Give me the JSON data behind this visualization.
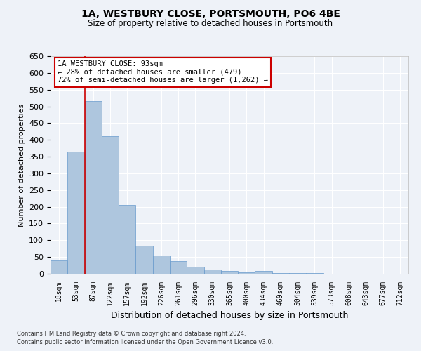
{
  "title": "1A, WESTBURY CLOSE, PORTSMOUTH, PO6 4BE",
  "subtitle": "Size of property relative to detached houses in Portsmouth",
  "xlabel": "Distribution of detached houses by size in Portsmouth",
  "ylabel": "Number of detached properties",
  "bar_color": "#aec6de",
  "bar_edge_color": "#6699cc",
  "background_color": "#eef2f8",
  "grid_color": "#ffffff",
  "categories": [
    "18sqm",
    "53sqm",
    "87sqm",
    "122sqm",
    "157sqm",
    "192sqm",
    "226sqm",
    "261sqm",
    "296sqm",
    "330sqm",
    "365sqm",
    "400sqm",
    "434sqm",
    "469sqm",
    "504sqm",
    "539sqm",
    "573sqm",
    "608sqm",
    "643sqm",
    "677sqm",
    "712sqm"
  ],
  "values": [
    40,
    365,
    515,
    410,
    205,
    83,
    55,
    38,
    22,
    13,
    8,
    5,
    8,
    2,
    2,
    2,
    1,
    1,
    0,
    1,
    1
  ],
  "ylim": [
    0,
    650
  ],
  "yticks": [
    0,
    50,
    100,
    150,
    200,
    250,
    300,
    350,
    400,
    450,
    500,
    550,
    600,
    650
  ],
  "annotation_title": "1A WESTBURY CLOSE: 93sqm",
  "annotation_line1": "← 28% of detached houses are smaller (479)",
  "annotation_line2": "72% of semi-detached houses are larger (1,262) →",
  "annotation_box_color": "#ffffff",
  "annotation_box_edge": "#cc0000",
  "red_line_color": "#cc0000",
  "footer1": "Contains HM Land Registry data © Crown copyright and database right 2024.",
  "footer2": "Contains public sector information licensed under the Open Government Licence v3.0."
}
